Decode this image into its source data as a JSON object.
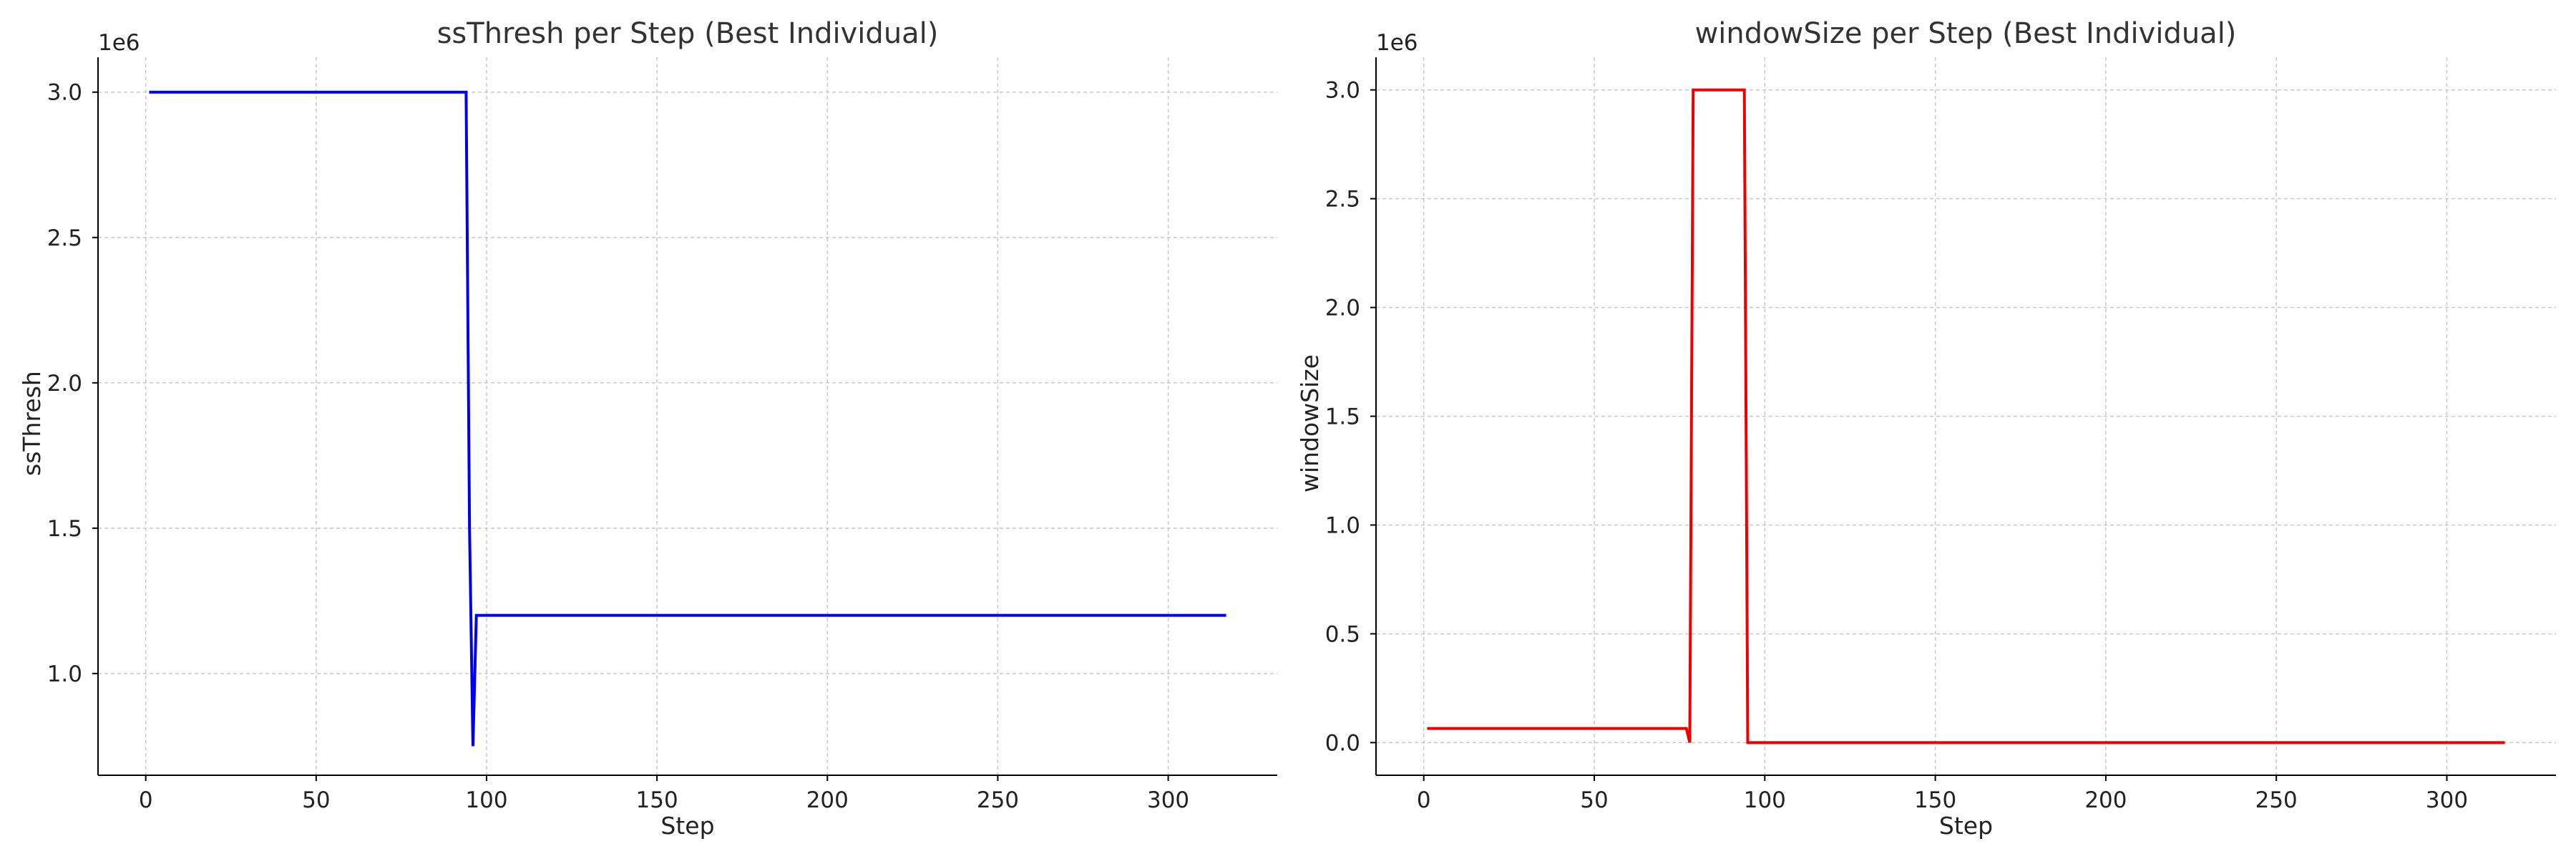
{
  "chart_data": [
    {
      "type": "line",
      "title": "ssThresh per Step (Best Individual)",
      "xlabel": "Step",
      "ylabel": "ssThresh",
      "y_offset_label": "1e6",
      "xlim": [
        -14,
        332
      ],
      "ylim": [
        0.65,
        3.12
      ],
      "xticks": [
        0,
        50,
        100,
        150,
        200,
        250,
        300
      ],
      "xtick_labels": [
        "0",
        "50",
        "100",
        "150",
        "200",
        "250",
        "300"
      ],
      "yticks": [
        1.0,
        1.5,
        2.0,
        2.5,
        3.0
      ],
      "ytick_labels": [
        "1.0",
        "1.5",
        "2.0",
        "2.5",
        "3.0"
      ],
      "grid": true,
      "series": [
        {
          "color": "#0000ee",
          "x": [
            1,
            94,
            95,
            96,
            97,
            317
          ],
          "y": [
            3.0,
            3.0,
            1.5,
            0.75,
            1.2,
            1.2
          ]
        }
      ]
    },
    {
      "type": "line",
      "title": "windowSize per Step (Best Individual)",
      "xlabel": "Step",
      "ylabel": "windowSize",
      "y_offset_label": "1e6",
      "xlim": [
        -14,
        332
      ],
      "ylim": [
        -0.15,
        3.15
      ],
      "xticks": [
        0,
        50,
        100,
        150,
        200,
        250,
        300
      ],
      "xtick_labels": [
        "0",
        "50",
        "100",
        "150",
        "200",
        "250",
        "300"
      ],
      "yticks": [
        0.0,
        0.5,
        1.0,
        1.5,
        2.0,
        2.5,
        3.0
      ],
      "ytick_labels": [
        "0.0",
        "0.5",
        "1.0",
        "1.5",
        "2.0",
        "2.5",
        "3.0"
      ],
      "grid": true,
      "series": [
        {
          "color": "#ee0000",
          "x": [
            1,
            77,
            78,
            79,
            94,
            95,
            317
          ],
          "y": [
            0.065,
            0.065,
            0.0,
            3.0,
            3.0,
            0.0,
            0.0
          ]
        }
      ]
    }
  ]
}
